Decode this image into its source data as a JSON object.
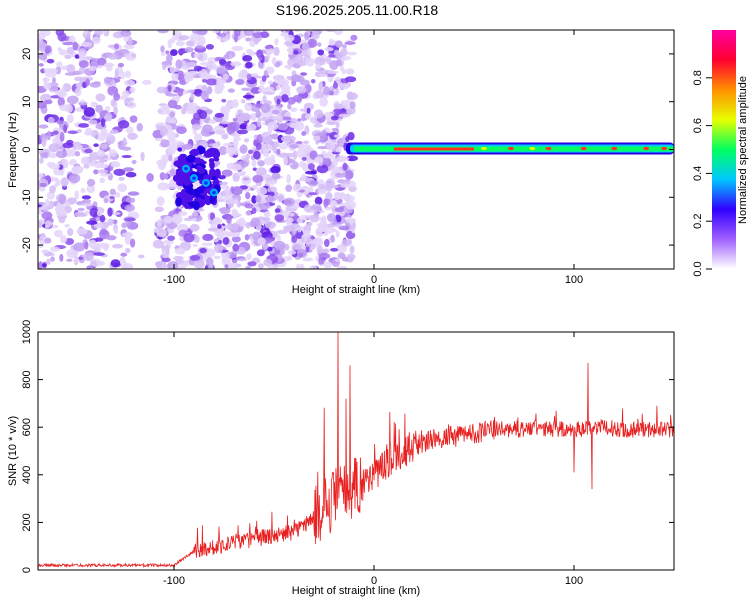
{
  "title": "S196.2025.205.11.00.R18",
  "chart_data": [
    {
      "type": "heatmap",
      "xlabel": "Height of straight line (km)",
      "ylabel": "Frequency (Hz)",
      "xlim": [
        -168,
        150
      ],
      "ylim": [
        -25,
        25
      ],
      "x_ticks": [
        -100,
        0,
        100
      ],
      "y_ticks": [
        -20,
        -10,
        0,
        10,
        20
      ],
      "colorbar": {
        "label": "Normalized spectral amplitude",
        "range": [
          0,
          1
        ],
        "ticks": [
          0.0,
          0.2,
          0.4,
          0.6,
          0.8
        ],
        "tick_labels": [
          "0.0",
          "0.2",
          "0.4",
          "0.6",
          "0.8"
        ],
        "colors": [
          "#ffffff",
          "#a060ff",
          "#3000ff",
          "#00c8ff",
          "#00ff60",
          "#e8ff00",
          "#ff9000",
          "#ff0030",
          "#ff00a0"
        ]
      },
      "features": {
        "noise_region_x": [
          -168,
          -10
        ],
        "noise_gap_x": [
          -120,
          -108
        ],
        "cluster_x": [
          -98,
          -78
        ],
        "cluster_freq_range": [
          -12,
          0
        ],
        "signal_band_x": [
          -14,
          150
        ],
        "signal_band_freq": 0
      }
    },
    {
      "type": "line",
      "xlabel": "Height of straight line (km)",
      "ylabel": "SNR (10 * v/v)",
      "xlim": [
        -168,
        150
      ],
      "ylim": [
        0,
        1000
      ],
      "x_ticks": [
        -100,
        0,
        100
      ],
      "y_ticks": [
        0,
        200,
        400,
        600,
        800,
        1000
      ],
      "series_color": "#e82020",
      "profile": {
        "x": [
          -168,
          -100,
          -90,
          -60,
          -40,
          -30,
          -20,
          -10,
          0,
          10,
          20,
          30,
          40,
          50,
          60,
          70,
          80,
          90,
          100,
          110,
          120,
          130,
          150
        ],
        "y": [
          20,
          20,
          80,
          130,
          160,
          220,
          300,
          350,
          400,
          480,
          520,
          550,
          560,
          575,
          590,
          590,
          595,
          590,
          590,
          600,
          595,
          590,
          590
        ]
      },
      "peaks": [
        {
          "x": -18,
          "y": 1000
        },
        {
          "x": -12,
          "y": 860
        },
        {
          "x": -14,
          "y": 720
        },
        {
          "x": 107,
          "y": 870
        },
        {
          "x": 100,
          "y": 820
        }
      ],
      "dips": [
        {
          "x": 100,
          "y": 410
        },
        {
          "x": 109,
          "y": 340
        }
      ]
    }
  ]
}
